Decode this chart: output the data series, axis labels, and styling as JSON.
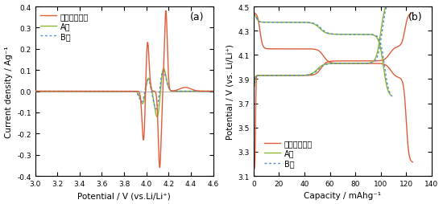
{
  "fig_width": 5.5,
  "fig_height": 2.55,
  "dpi": 100,
  "panel_a": {
    "label": "(a)",
    "xlim": [
      3.0,
      4.6
    ],
    "ylim": [
      -0.4,
      0.4
    ],
    "xticks": [
      3.0,
      3.2,
      3.4,
      3.6,
      3.8,
      4.0,
      4.2,
      4.4,
      4.6
    ],
    "yticks": [
      -0.4,
      -0.3,
      -0.2,
      -0.1,
      0.0,
      0.1,
      0.2,
      0.3,
      0.4
    ],
    "xlabel": "Potential / V (vs.Li/Li⁺)",
    "ylabel": "Current density / Ag⁻¹",
    "legend": [
      "ナノワイヤー",
      "A社",
      "B社"
    ],
    "colors": [
      "#e05c3a",
      "#8ab830",
      "#5588cc"
    ],
    "linestyles": [
      "-",
      "-",
      ":"
    ]
  },
  "panel_b": {
    "label": "(b)",
    "xlim": [
      0,
      140
    ],
    "ylim": [
      3.1,
      4.5
    ],
    "xticks": [
      0,
      20,
      40,
      60,
      80,
      100,
      120,
      140
    ],
    "yticks": [
      3.1,
      3.3,
      3.5,
      3.7,
      3.9,
      4.1,
      4.3,
      4.5
    ],
    "xlabel": "Capacity / mAhg⁻¹",
    "ylabel": "Potential / V (vs. Li/Li⁺)",
    "legend": [
      "ナノワイヤー",
      "A社",
      "B社"
    ],
    "colors": [
      "#e05c3a",
      "#8ab830",
      "#5588cc"
    ],
    "linestyles": [
      "-",
      "-",
      ":"
    ]
  }
}
